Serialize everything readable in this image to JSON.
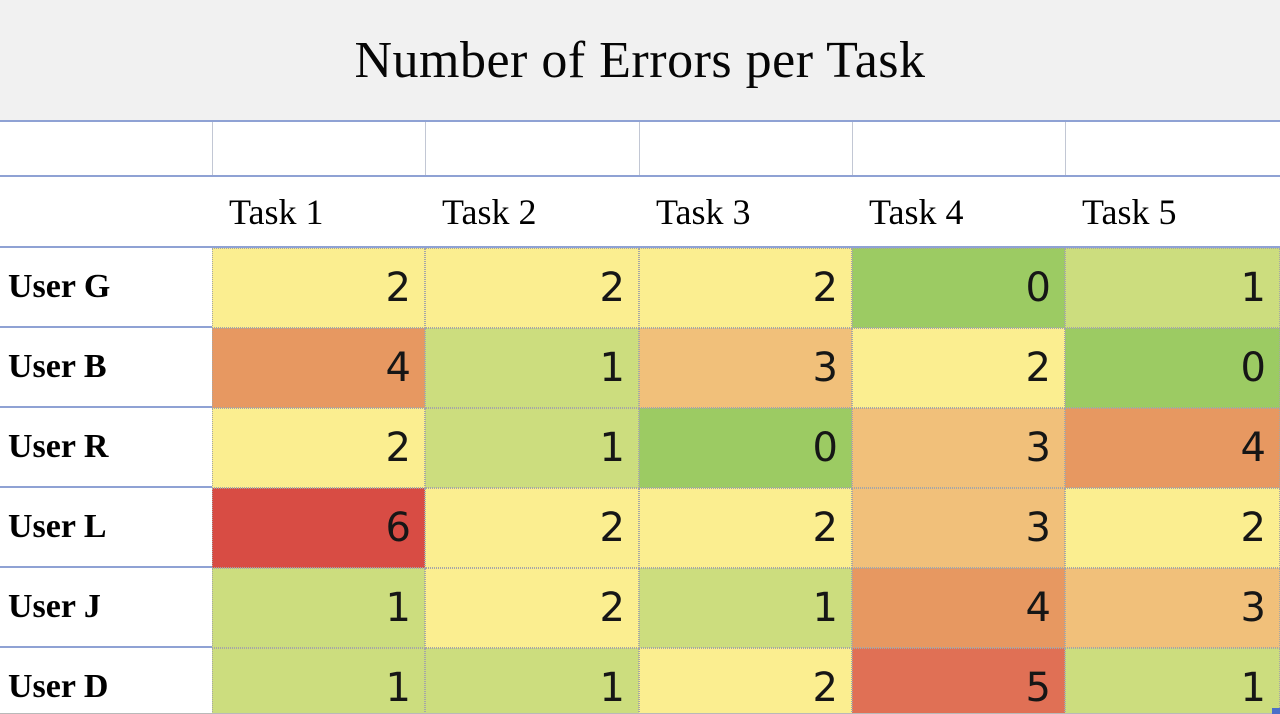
{
  "title": "Number of Errors per Task",
  "table": {
    "column_headers": [
      "Task 1",
      "Task 2",
      "Task 3",
      "Task 4",
      "Task 5"
    ],
    "rows": [
      {
        "label": "User G",
        "values": [
          2,
          2,
          2,
          0,
          1
        ]
      },
      {
        "label": "User B",
        "values": [
          4,
          1,
          3,
          2,
          0
        ]
      },
      {
        "label": "User R",
        "values": [
          2,
          1,
          0,
          3,
          4
        ]
      },
      {
        "label": "User L",
        "values": [
          6,
          2,
          2,
          3,
          2
        ]
      },
      {
        "label": "User J",
        "values": [
          1,
          2,
          1,
          4,
          3
        ]
      },
      {
        "label": "User D",
        "values": [
          1,
          1,
          2,
          5,
          1
        ]
      }
    ]
  },
  "heatmap_value_colors": {
    "0": "#9ccb63",
    "1": "#ccdd7e",
    "2": "#fbee90",
    "3": "#f1c07a",
    "4": "#e79861",
    "5": "#e07055",
    "6": "#d84c44"
  },
  "colors": {
    "title_background": "#f1f1f1",
    "grid_line_blue": "#8fa2d4",
    "grid_line_gray": "#c2c7d4",
    "heat_cell_dotted_border": "#a6a6a6",
    "selection_handle_blue": "#4a6fc9",
    "text": "#060606"
  },
  "chart_data": {
    "type": "heatmap",
    "title": "Number of Errors per Task",
    "x_categories": [
      "Task 1",
      "Task 2",
      "Task 3",
      "Task 4",
      "Task 5"
    ],
    "y_categories": [
      "User G",
      "User B",
      "User R",
      "User L",
      "User J",
      "User D"
    ],
    "values": [
      [
        2,
        2,
        2,
        0,
        1
      ],
      [
        4,
        1,
        3,
        2,
        0
      ],
      [
        2,
        1,
        0,
        3,
        4
      ],
      [
        6,
        2,
        2,
        3,
        2
      ],
      [
        1,
        2,
        1,
        4,
        3
      ],
      [
        1,
        1,
        2,
        5,
        1
      ]
    ],
    "color_scale": {
      "min_value": 0,
      "mid_value": 2,
      "max_value": 6,
      "min_color": "#9ccb63",
      "mid_color": "#fbee90",
      "max_color": "#d84c44"
    },
    "legend": "none",
    "cell_text_alignment": "right"
  }
}
